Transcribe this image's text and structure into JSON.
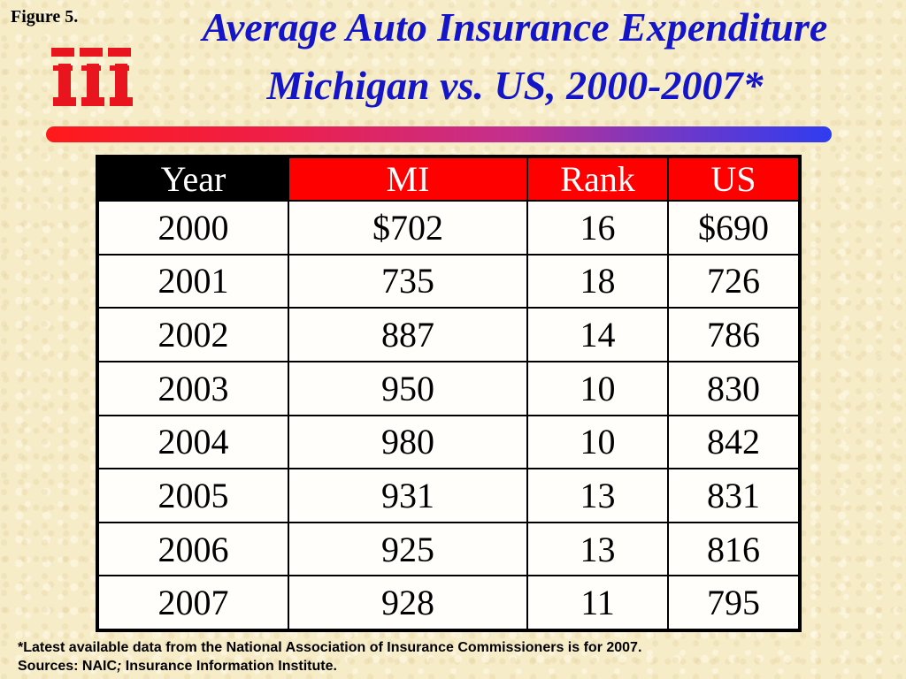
{
  "figure_label": "Figure 5.",
  "title_line1": "Average Auto Insurance Expenditure",
  "title_line2": "Michigan vs. US, 2000-2007*",
  "colors": {
    "title": "#1414c8",
    "header_year_bg": "#000000",
    "header_bg": "#ff0000",
    "logo": "#e8141e"
  },
  "logo_icon": "iii-logo",
  "chart_data": {
    "type": "table",
    "columns": [
      "Year",
      "MI",
      "Rank",
      "US"
    ],
    "rows": [
      [
        "2000",
        "$702",
        "16",
        "$690"
      ],
      [
        "2001",
        "735",
        "18",
        "726"
      ],
      [
        "2002",
        "887",
        "14",
        "786"
      ],
      [
        "2003",
        "950",
        "10",
        "830"
      ],
      [
        "2004",
        "980",
        "10",
        "842"
      ],
      [
        "2005",
        "931",
        "13",
        "831"
      ],
      [
        "2006",
        "925",
        "13",
        "816"
      ],
      [
        "2007",
        "928",
        "11",
        "795"
      ]
    ]
  },
  "footnote": {
    "line1": "*Latest available data from the National Association of Insurance Commissioners is for 2007.",
    "line2_a": "Sources:  NAIC",
    "line2_sep": ";",
    "line2_b": " Insurance Information Institute."
  }
}
